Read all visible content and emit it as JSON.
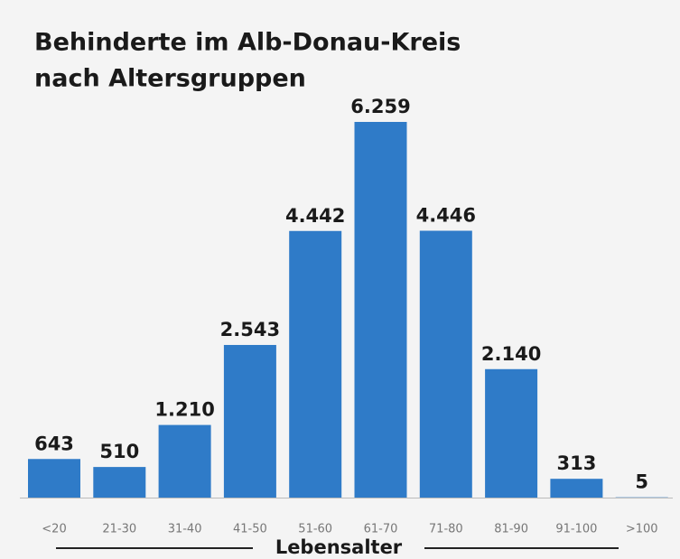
{
  "chart_data": {
    "type": "bar",
    "title": [
      "Behinderte im Alb-Donau-Kreis",
      "nach Altersgruppen"
    ],
    "x_label": "Lebensalter",
    "categories": [
      "<20",
      "21-30",
      "31-40",
      "41-50",
      "51-60",
      "61-70",
      "71-80",
      "81-90",
      "91-100",
      ">100"
    ],
    "values": [
      643,
      510,
      1210,
      2543,
      4442,
      6259,
      4446,
      2140,
      313,
      5
    ],
    "value_labels": [
      "643",
      "510",
      "1.210",
      "2.543",
      "4.442",
      "6.259",
      "4.446",
      "2.140",
      "313",
      "5"
    ],
    "color": "#2f7bc8"
  }
}
